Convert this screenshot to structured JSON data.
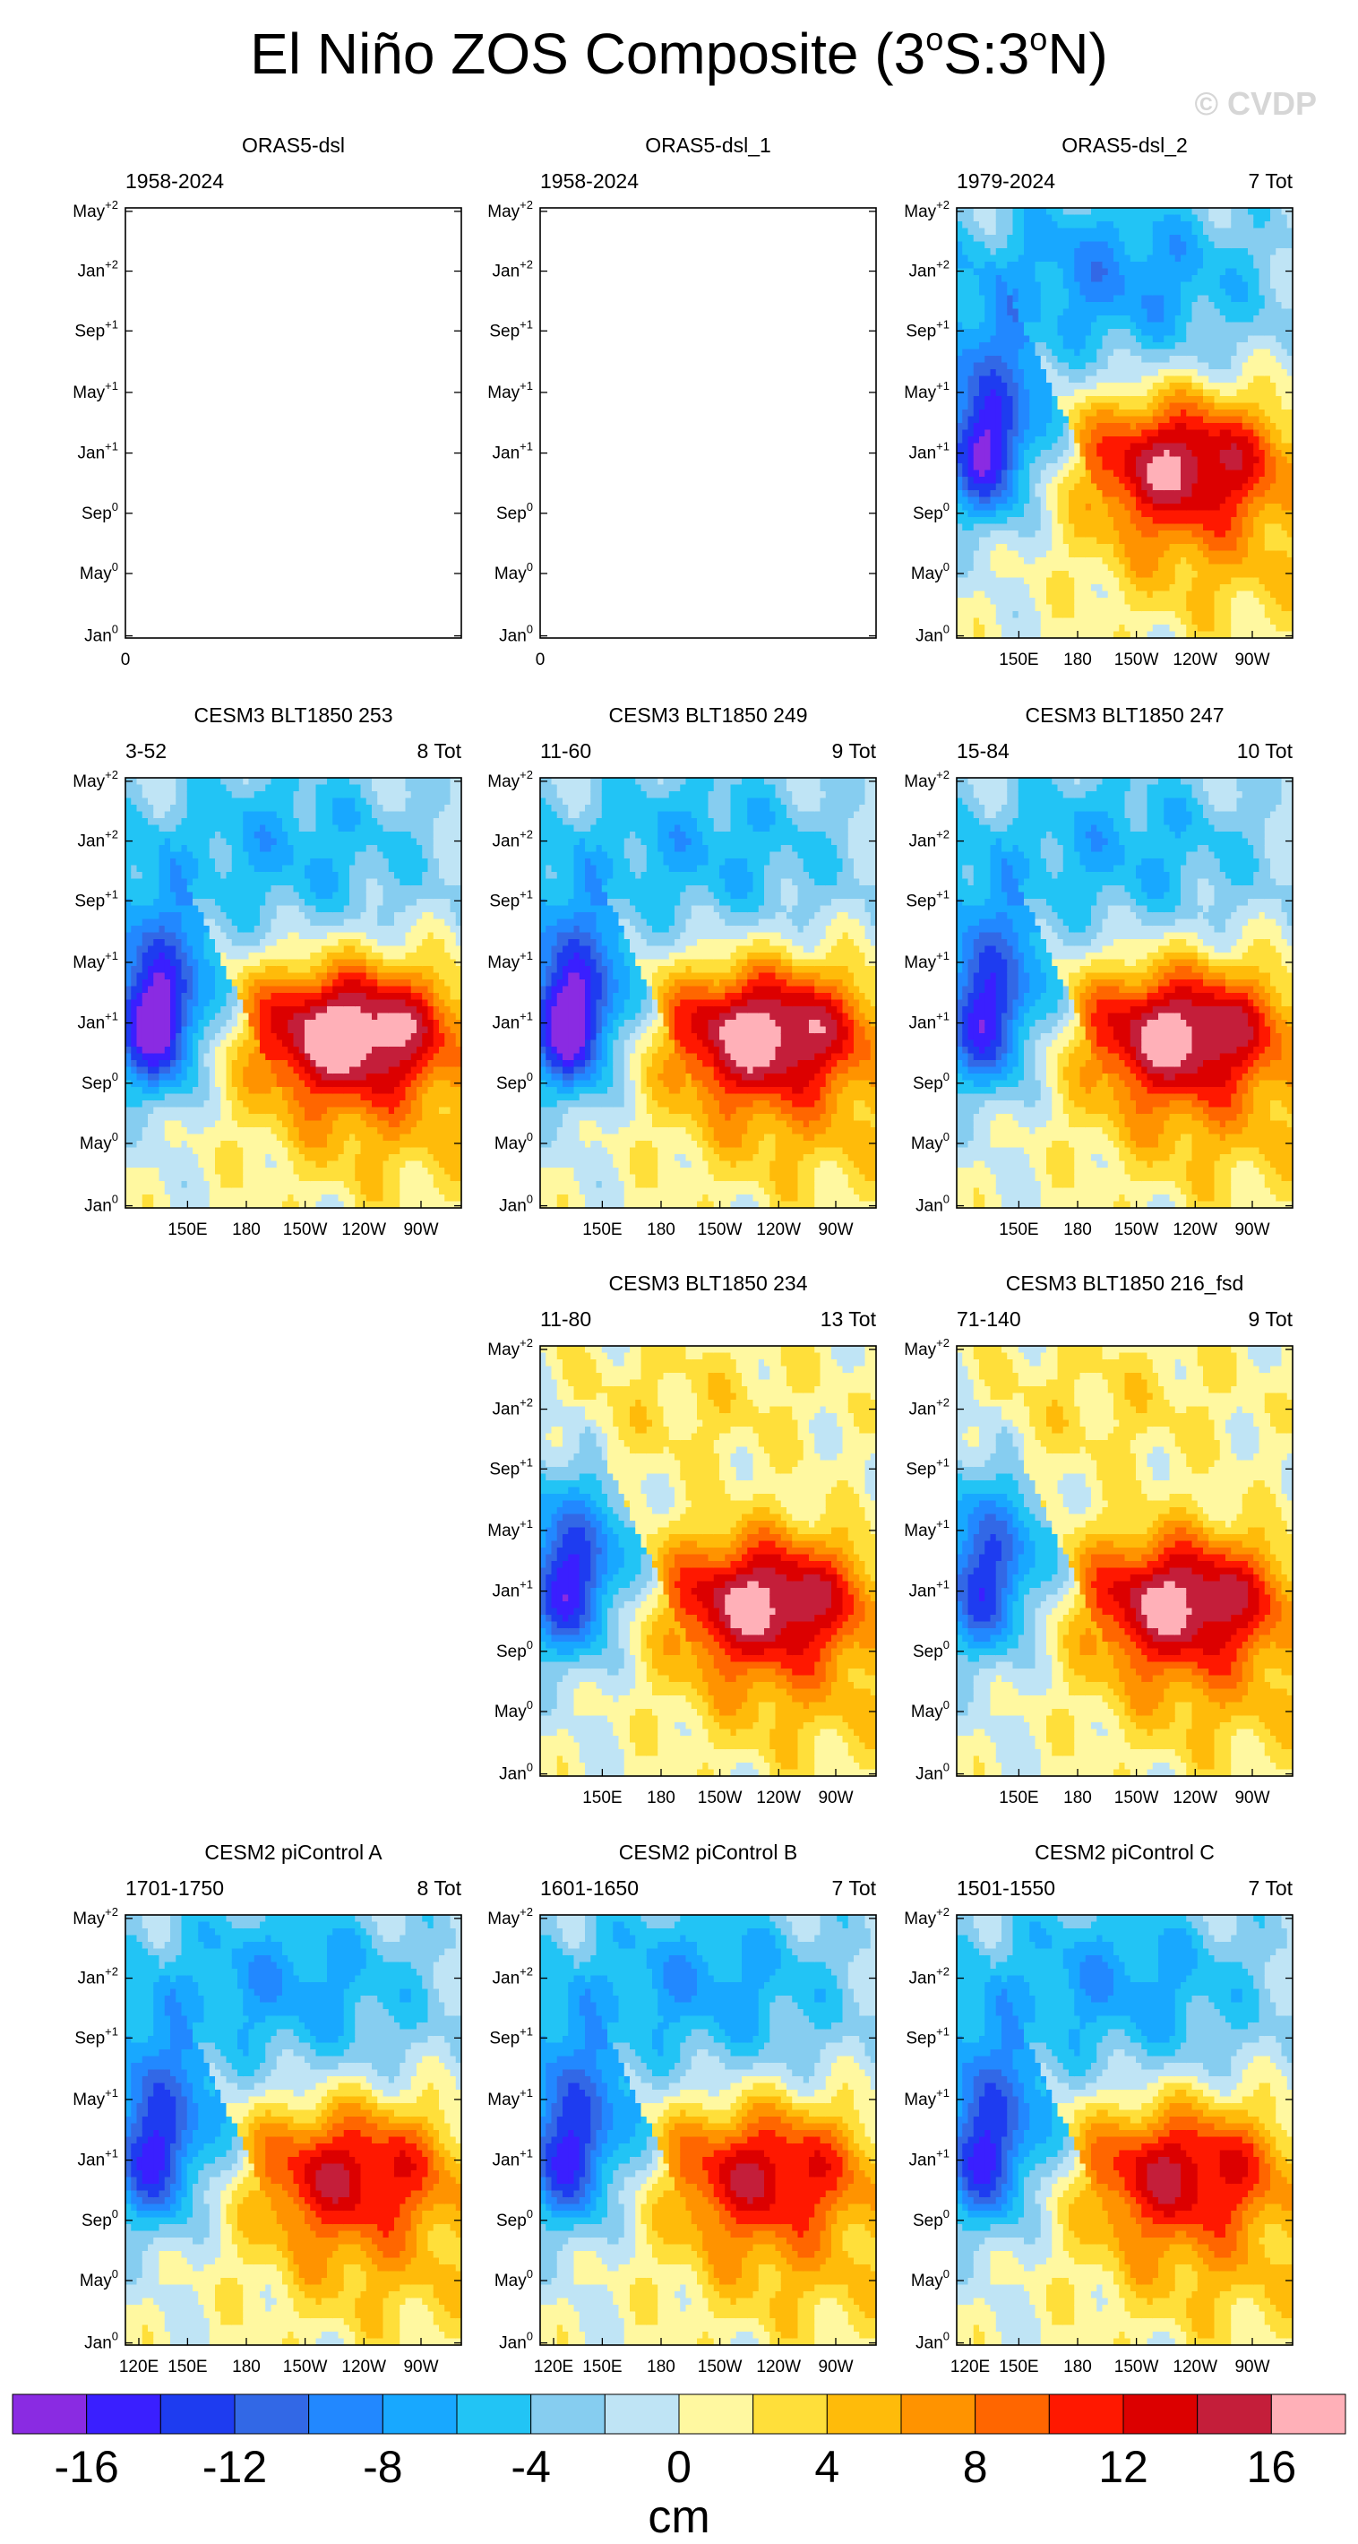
{
  "title_main": "El Niño ZOS Composite (3",
  "title_sup1": "o",
  "title_mid": "S:3",
  "title_sup2": "o",
  "title_end": "N)",
  "watermark": "© CVDP",
  "colorbar": {
    "colors": [
      "#8a2be2",
      "#3a1fff",
      "#1e3cf0",
      "#3268e6",
      "#2288ff",
      "#18a8ff",
      "#22c4f5",
      "#86cdf0",
      "#bfe4f5",
      "#fff8a0",
      "#ffdf3a",
      "#ffbb0a",
      "#ff9300",
      "#ff6600",
      "#ff1800",
      "#dc0000",
      "#c41e3a",
      "#ffb0b8"
    ],
    "tick_labels": [
      "-16",
      "-12",
      "-8",
      "-4",
      "0",
      "4",
      "8",
      "12",
      "16"
    ],
    "unit": "cm"
  },
  "chart_data": {
    "type": "heatmap",
    "variable": "ZOS",
    "units": "cm",
    "contour_levels": [
      -16,
      -14,
      -12,
      -10,
      -8,
      -6,
      -4,
      -2,
      0,
      2,
      4,
      6,
      8,
      10,
      12,
      14,
      16
    ],
    "ytick_base": [
      "May",
      "Jan",
      "Sep",
      "May",
      "Jan",
      "Sep",
      "May",
      "Jan"
    ],
    "ytick_sup": [
      "+2",
      "+2",
      "+1",
      "+1",
      "+1",
      "0",
      "0",
      "0"
    ],
    "panels": [
      {
        "title": "ORAS5-dsl",
        "left_sub": "1958-2024",
        "right_sub": "",
        "row": 0,
        "col": 0,
        "empty": true,
        "xticks": [],
        "xaxis_note": "0",
        "ev": 0
      },
      {
        "title": "ORAS5-dsl_1",
        "left_sub": "1958-2024",
        "right_sub": "",
        "row": 0,
        "col": 1,
        "empty": true,
        "xticks": [],
        "xaxis_note": "0",
        "ev": 0
      },
      {
        "title": "ORAS5-dsl_2",
        "left_sub": "1979-2024",
        "right_sub": "7 Tot",
        "row": 0,
        "col": 2,
        "empty": false,
        "xticks": [
          "150E",
          "180",
          "150W",
          "120W",
          "90W"
        ],
        "ev": 15,
        "wp": -12,
        "late": -8
      },
      {
        "title": "CESM3 BLT1850 253",
        "left_sub": "3-52",
        "right_sub": "8 Tot",
        "row": 1,
        "col": 0,
        "empty": false,
        "xticks": [
          "150E",
          "180",
          "150W",
          "120W",
          "90W"
        ],
        "ev": 18,
        "wp": -15,
        "late": -6
      },
      {
        "title": "CESM3 BLT1850 249",
        "left_sub": "11-60",
        "right_sub": "9 Tot",
        "row": 1,
        "col": 1,
        "empty": false,
        "xticks": [
          "150E",
          "180",
          "150W",
          "120W",
          "90W"
        ],
        "ev": 17,
        "wp": -15,
        "late": -6
      },
      {
        "title": "CESM3 BLT1850 247",
        "left_sub": "15-84",
        "right_sub": "10 Tot",
        "row": 1,
        "col": 2,
        "empty": false,
        "xticks": [
          "150E",
          "180",
          "150W",
          "120W",
          "90W"
        ],
        "ev": 16.5,
        "wp": -11,
        "late": -6
      },
      {
        "title": "CESM3 BLT1850 234",
        "left_sub": "11-80",
        "right_sub": "13 Tot",
        "row": 2,
        "col": 1,
        "empty": false,
        "xticks": [
          "150E",
          "180",
          "150W",
          "120W",
          "90W"
        ],
        "ev": 16,
        "wp": -11,
        "late": 3
      },
      {
        "title": "CESM3 BLT1850 216_fsd",
        "left_sub": "71-140",
        "right_sub": "9 Tot",
        "row": 2,
        "col": 2,
        "empty": false,
        "xticks": [
          "150E",
          "180",
          "150W",
          "120W",
          "90W"
        ],
        "ev": 16,
        "wp": -9,
        "late": 3
      },
      {
        "title": "CESM2 piControl A",
        "left_sub": "1701-1750",
        "right_sub": "8 Tot",
        "row": 3,
        "col": 0,
        "empty": false,
        "xticks": [
          "120E",
          "150E",
          "180",
          "150W",
          "120W",
          "90W"
        ],
        "ev": 12.5,
        "wp": -10,
        "late": -7
      },
      {
        "title": "CESM2 piControl B",
        "left_sub": "1601-1650",
        "right_sub": "7 Tot",
        "row": 3,
        "col": 1,
        "empty": false,
        "xticks": [
          "120E",
          "150E",
          "180",
          "150W",
          "120W",
          "90W"
        ],
        "ev": 12.5,
        "wp": -10,
        "late": -7
      },
      {
        "title": "CESM2 piControl C",
        "left_sub": "1501-1550",
        "right_sub": "7 Tot",
        "row": 3,
        "col": 2,
        "empty": false,
        "xticks": [
          "120E",
          "150E",
          "180",
          "150W",
          "120W",
          "90W"
        ],
        "ev": 13,
        "wp": -10,
        "late": -7
      }
    ]
  }
}
